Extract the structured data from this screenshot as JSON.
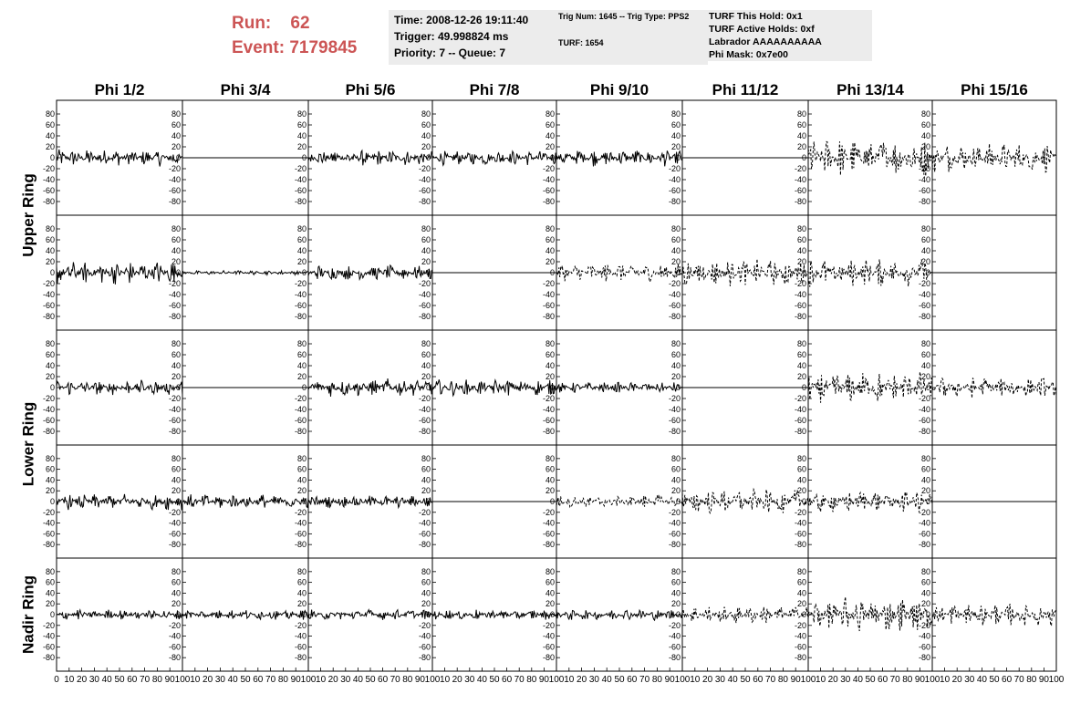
{
  "header": {
    "run_label": "Run:",
    "run_value": "62",
    "event_label": "Event:",
    "event_value": "7179845",
    "time": "Time: 2008-12-26 19:11:40",
    "trigger": "Trigger: 49.998824 ms",
    "priority": "Priority: 7 -- Queue: 7",
    "trig_num": "Trig Num: 1645 -- Trig Type: PPS2",
    "turf": "TURF: 1654",
    "turf_hold": "TURF This Hold: 0x1",
    "turf_active": "TURF Active Holds: 0xf",
    "labrador": "Labrador AAAAAAAAAA",
    "phi_mask": "Phi Mask: 0x7e00"
  },
  "chart_data": {
    "type": "line",
    "columns": [
      "Phi 1/2",
      "Phi 3/4",
      "Phi 5/6",
      "Phi 7/8",
      "Phi 9/10",
      "Phi 11/12",
      "Phi 13/14",
      "Phi 15/16"
    ],
    "ring_labels": [
      "Upper Ring",
      "Lower Ring",
      "Nadir Ring"
    ],
    "ylim": [
      -95,
      95
    ],
    "yticks": [
      80,
      60,
      40,
      20,
      0,
      -20,
      -40,
      -60,
      -80
    ],
    "xlim": [
      0,
      100
    ],
    "xticks": [
      0,
      10,
      20,
      30,
      40,
      50,
      60,
      70,
      80,
      90,
      100
    ],
    "xticks_last": [
      10,
      20,
      30,
      40,
      50,
      60,
      70,
      80,
      90,
      100
    ],
    "row_style": [
      [
        "solid",
        "flat",
        "solid",
        "solid",
        "solid",
        "flat",
        "dashed",
        "dashed"
      ],
      [
        "solid",
        "solid",
        "solid",
        "flat",
        "dashed",
        "dashed",
        "dashed",
        "flat"
      ],
      [
        "solid",
        "flat",
        "solid",
        "solid",
        "solid",
        "flat",
        "dashed",
        "dashed"
      ],
      [
        "solid",
        "solid",
        "solid",
        "flat",
        "dashed",
        "dashed",
        "dashed",
        "flat"
      ],
      [
        "solid",
        "solid",
        "solid",
        "solid",
        "solid",
        "dashed",
        "dashed",
        "dashed"
      ]
    ],
    "amplitude": [
      [
        16,
        0,
        15,
        14,
        16,
        0,
        36,
        28
      ],
      [
        22,
        4,
        14,
        0,
        18,
        26,
        26,
        0
      ],
      [
        14,
        0,
        17,
        15,
        10,
        0,
        30,
        20
      ],
      [
        16,
        14,
        12,
        0,
        13,
        24,
        22,
        0
      ],
      [
        10,
        10,
        10,
        10,
        11,
        17,
        34,
        22
      ]
    ]
  }
}
